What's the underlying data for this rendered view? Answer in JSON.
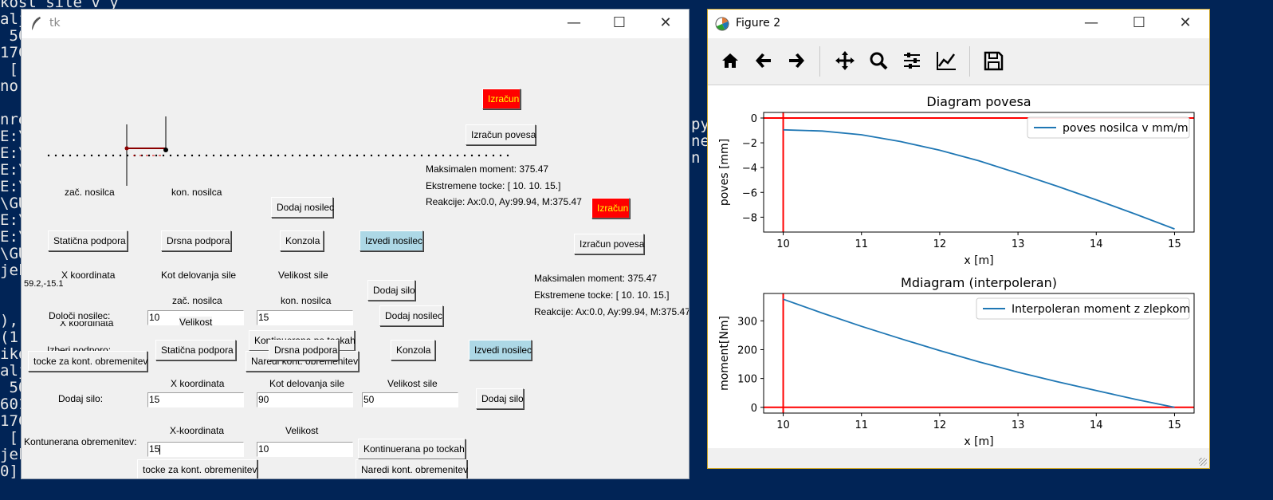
{
  "console": {
    "lines": [
      "kost sile v y",
      "alj",
      " 50",
      "17C",
      " [",
      "nor",
      "",
      "nre",
      "E:\\U",
      "E:\\U",
      "E:\\U",
      "E:\\F",
      "\\GU",
      "E:\\U",
      "E:\\U",
      "\\GU",
      "jek",
      "",
      "",
      "),",
      "(1:",
      "iko",
      "alj",
      " 50",
      "601",
      "17C",
      " [",
      "jek",
      "0]."
    ],
    "right_lines": [
      "py\"",
      "ne",
      "n"
    ]
  },
  "tk": {
    "title": "tk",
    "btn_izracun": "Izračun",
    "btn_izracun_povesa": "Izračun povesa",
    "max_moment": "Maksimalen moment: 375.47",
    "ekstremene": "Ekstremene tocke: [ 10.  10.  15.]",
    "reakcije": "Reakcije: Ax:0.0,   Ay:99.94,   M:375.47",
    "lbl_zac_nosilca": "zač. nosilca",
    "lbl_kon_nosilca": "kon. nosilca",
    "btn_dodaj_nosilec": "Dodaj nosilec",
    "btn_staticna_podpora": "Statična podpora",
    "btn_drsna_podpora": "Drsna podpora",
    "btn_konzola": "Konzola",
    "btn_izvedi_nosilec": "Izvedi nosilec",
    "lbl_x_koordinata": "X koordinata",
    "lbl_kot_delovanja": "Kot delovanja sile",
    "lbl_velikost_sile": "Velikost sile",
    "coord_readout": "59.2,-15.1",
    "btn_dodaj_silo": "Dodaj silo",
    "lbl_doloci_nosilec": "Določi nosilec:",
    "lbl_x_koordinata_ghost": "X koordinata",
    "lbl_velikost": "Velikost",
    "btn_kontinuirana": "Kontinuerana po tockah",
    "lbl_izberi_podporo": "Izberi podporo:",
    "btn_tocke": "tocke za kont. obremenitev",
    "btn_naredi": "Naredi kont. obremenitev",
    "lbl_dodaj_silo": "Dodaj silo:",
    "lbl_x_koordinata_dash": "X-koordinata",
    "lbl_kont_obremenitev": "Kontunerana obremenitev:",
    "entry_zac": "10",
    "entry_kon": "15",
    "entry_x_sile": "15",
    "entry_kot": "90",
    "entry_velikost_sile": "50",
    "entry_kont_x": "15",
    "entry_kont_vel": "10"
  },
  "figure": {
    "title": "Figure 2",
    "plot1": {
      "title": "Diagram povesa",
      "xlabel": "x [m]",
      "ylabel": "poves [mm]",
      "legend": "poves nosilca v mm/m",
      "xticks": [
        "10",
        "11",
        "12",
        "13",
        "14",
        "15"
      ],
      "yticks": [
        "0",
        "−2",
        "−4",
        "−6",
        "−8"
      ]
    },
    "plot2": {
      "title": "Mdiagram (interpoleran)",
      "xlabel": "x [m]",
      "ylabel": "moment[Nm]",
      "legend": "Interpoleran moment z zlepkom",
      "xticks": [
        "10",
        "11",
        "12",
        "13",
        "14",
        "15"
      ],
      "yticks": [
        "0",
        "100",
        "200",
        "300"
      ]
    }
  },
  "chart_data": [
    {
      "type": "line",
      "title": "Diagram povesa",
      "xlabel": "x [m]",
      "ylabel": "poves [mm]",
      "xlim": [
        9.75,
        15.25
      ],
      "ylim": [
        -9.2,
        0.45
      ],
      "series": [
        {
          "name": "poves nosilca v mm/m",
          "color": "#1f77b4",
          "x": [
            10,
            10.5,
            11,
            11.5,
            12,
            12.5,
            13,
            13.5,
            14,
            14.5,
            15
          ],
          "y": [
            -0.95,
            -1.05,
            -1.35,
            -1.9,
            -2.6,
            -3.45,
            -4.45,
            -5.5,
            -6.6,
            -7.75,
            -8.95
          ]
        }
      ],
      "reference_lines": {
        "color": "#ff0000",
        "vertical_x": 10,
        "horizontal_y": 0
      }
    },
    {
      "type": "line",
      "title": "Mdiagram (interpoleran)",
      "xlabel": "x [m]",
      "ylabel": "moment[Nm]",
      "xlim": [
        9.75,
        15.25
      ],
      "ylim": [
        -20,
        395
      ],
      "series": [
        {
          "name": "Interpoleran moment z zlepkom",
          "color": "#1f77b4",
          "x": [
            10,
            10.5,
            11,
            11.5,
            12,
            12.5,
            13,
            13.5,
            14,
            14.5,
            15
          ],
          "y": [
            375,
            327,
            281,
            238,
            197,
            158,
            122,
            89,
            58,
            28,
            0
          ]
        }
      ],
      "reference_lines": {
        "color": "#ff0000",
        "vertical_x": 10,
        "horizontal_y": 0
      }
    }
  ]
}
